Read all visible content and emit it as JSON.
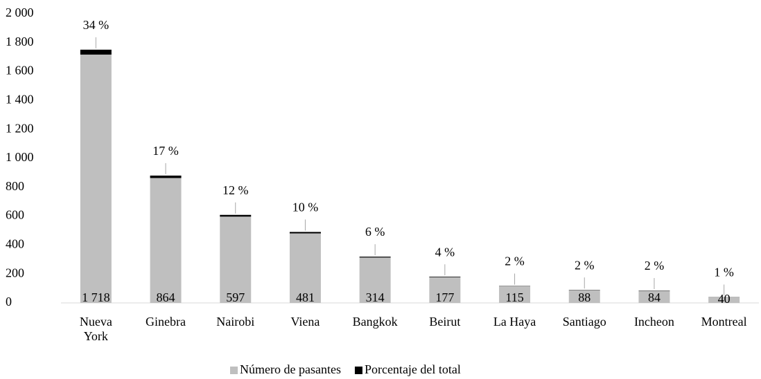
{
  "chart_data": {
    "type": "bar",
    "stacked": true,
    "categories": [
      "Nueva York",
      "Ginebra",
      "Nairobi",
      "Viena",
      "Bangkok",
      "Beirut",
      "La Haya",
      "Santiago",
      "Incheon",
      "Montreal"
    ],
    "series": [
      {
        "name": "Número de pasantes",
        "color": "#bfbfbf",
        "values": [
          1718,
          864,
          597,
          481,
          314,
          177,
          115,
          88,
          84,
          40
        ],
        "value_labels": [
          "1 718",
          "864",
          "597",
          "481",
          "314",
          "177",
          "115",
          "88",
          "84",
          "40"
        ]
      },
      {
        "name": "Porcentaje del total",
        "color": "#000000",
        "values": [
          34,
          17,
          12,
          10,
          6,
          4,
          2,
          2,
          2,
          1
        ],
        "value_labels": [
          "34 %",
          "17 %",
          "12 %",
          "10 %",
          "6 %",
          "4 %",
          "2 %",
          "2 %",
          "2 %",
          "1 %"
        ]
      }
    ],
    "ylim": [
      0,
      2000
    ],
    "yticks": [
      0,
      200,
      400,
      600,
      800,
      {
        "value": 1000,
        "label": "1 000"
      },
      {
        "value": 1200,
        "label": "1 200"
      },
      {
        "value": 1400,
        "label": "1 400"
      },
      {
        "value": 1600,
        "label": "1 600"
      },
      {
        "value": 1800,
        "label": "1 800"
      },
      {
        "value": 2000,
        "label": "2 000"
      }
    ],
    "grid": false,
    "legend": "bottom"
  }
}
